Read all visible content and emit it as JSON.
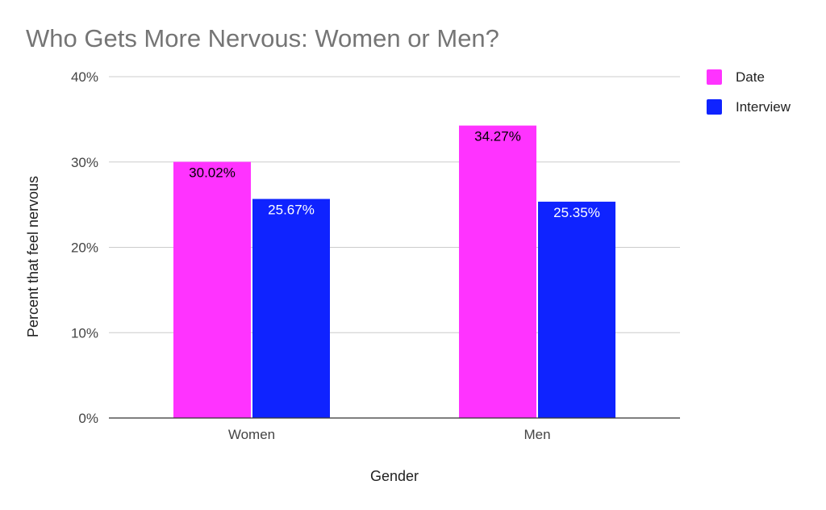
{
  "chart_data": {
    "type": "bar",
    "title": "Who Gets More Nervous: Women or Men?",
    "xlabel": "Gender",
    "ylabel": "Percent that feel nervous",
    "categories": [
      "Women",
      "Men"
    ],
    "series": [
      {
        "name": "Date",
        "color": "#ff33ff",
        "values": [
          30.02,
          34.27
        ],
        "labels": [
          "30.02%",
          "34.27%"
        ],
        "label_color": "#000000"
      },
      {
        "name": "Interview",
        "color": "#0f23ff",
        "values": [
          25.67,
          25.35
        ],
        "labels": [
          "25.67%",
          "25.35%"
        ],
        "label_color": "#ffffff"
      }
    ],
    "ylim": [
      0,
      40
    ],
    "yticks": [
      0,
      10,
      20,
      30,
      40
    ],
    "ytick_labels": [
      "0%",
      "10%",
      "20%",
      "30%",
      "40%"
    ],
    "grid": true,
    "legend_position": "top-right"
  }
}
